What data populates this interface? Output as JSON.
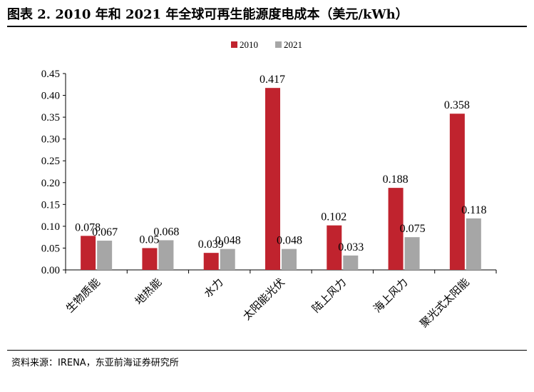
{
  "header": {
    "title": "图表 2.   2010 年和 2021 年全球可再生能源度电成本（美元/kWh）"
  },
  "footer": {
    "source": "资料来源：IRENA，东亚前海证券研究所"
  },
  "chart_data": {
    "type": "bar",
    "categories": [
      "生物质能",
      "地热能",
      "水力",
      "太阳能光伏",
      "陆上风力",
      "海上风力",
      "聚光式太阳能"
    ],
    "series": [
      {
        "name": "2010",
        "values": [
          0.078,
          0.05,
          0.039,
          0.417,
          0.102,
          0.188,
          0.358
        ],
        "labels": [
          "0.078",
          "0.05",
          "0.039",
          "0.417",
          "0.102",
          "0.188",
          "0.358"
        ],
        "color": "#c0232e"
      },
      {
        "name": "2021",
        "values": [
          0.067,
          0.068,
          0.048,
          0.048,
          0.033,
          0.075,
          0.118
        ],
        "labels": [
          "0.067",
          "0.068",
          "0.048",
          "0.048",
          "0.033",
          "0.075",
          "0.118"
        ],
        "color": "#a6a6a6"
      }
    ],
    "ylim": [
      0,
      0.45
    ],
    "yticks": [
      "0.00",
      "0.05",
      "0.10",
      "0.15",
      "0.20",
      "0.25",
      "0.30",
      "0.35",
      "0.40",
      "0.45"
    ],
    "legend_position": "top-center",
    "grid": false
  }
}
